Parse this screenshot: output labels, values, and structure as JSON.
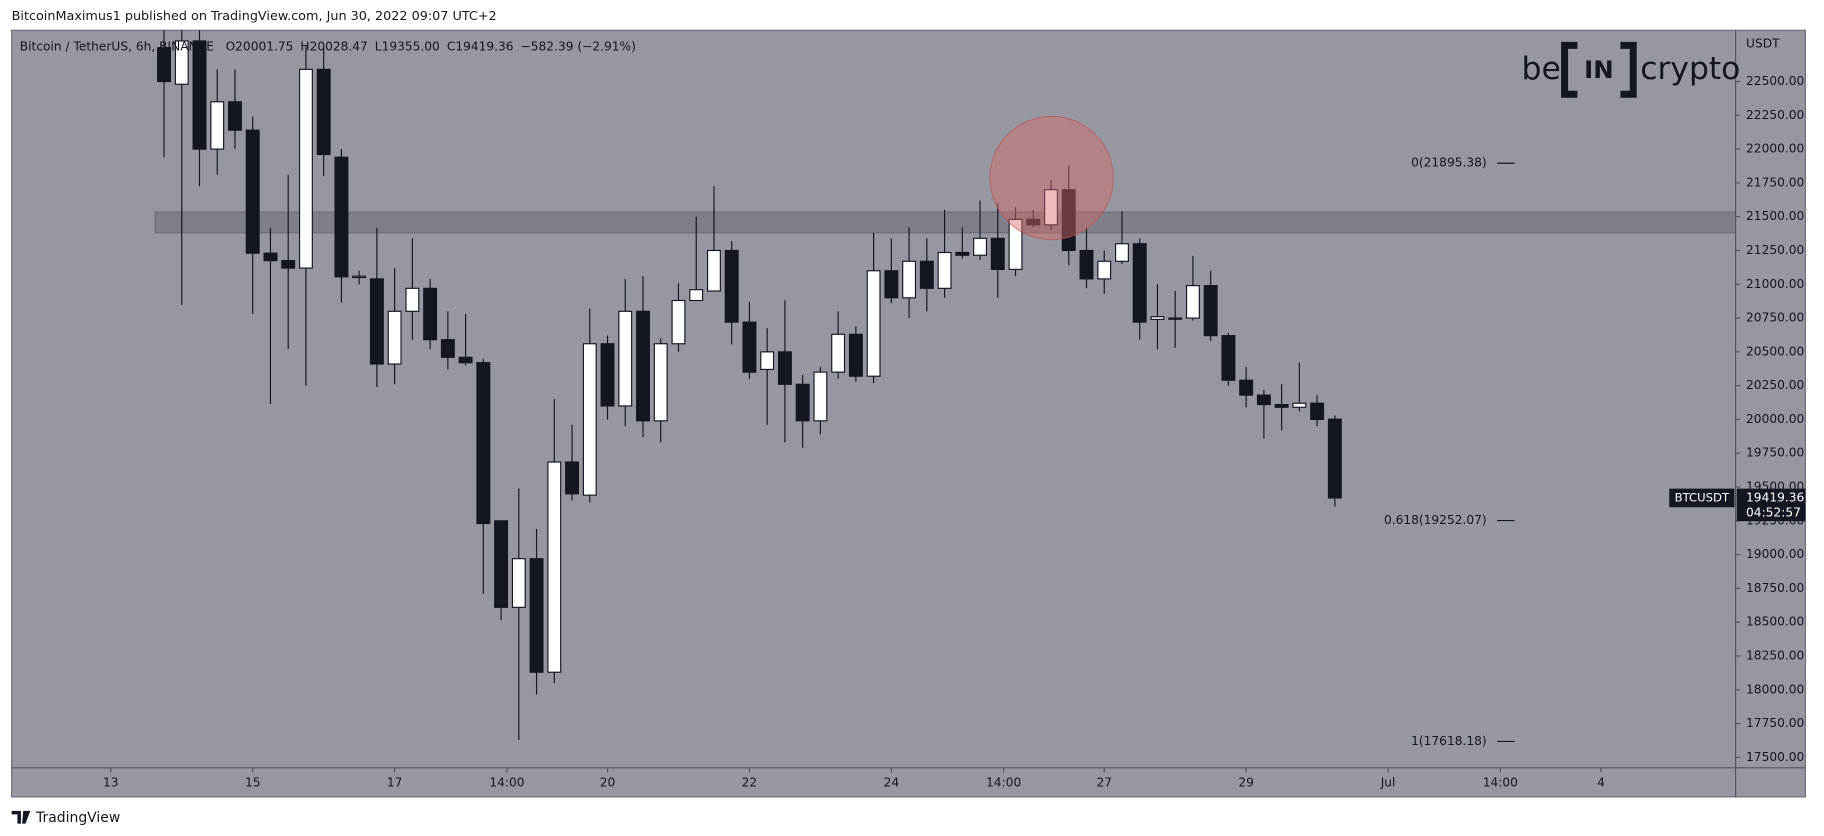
{
  "publish_note": "BitcoinMaximus1 published on TradingView.com, Jun 30, 2022 09:07 UTC+2",
  "footer": "TradingView",
  "logo": {
    "part1": "be",
    "part2": "IN",
    "part3": "crypto"
  },
  "chart_data": {
    "type": "candlestick",
    "header": {
      "symbol": "Bitcoin / TetherUS, 6h, BINANCE",
      "ohlc": [
        {
          "key": "O",
          "value": "20001.75"
        },
        {
          "key": "H",
          "value": "20028.47"
        },
        {
          "key": "L",
          "value": "19355.00"
        },
        {
          "key": "C",
          "value": "19419.36"
        }
      ],
      "change": "−582.39 (−2.91%)"
    },
    "currency": "USDT",
    "open": [
      22750,
      22480,
      22800,
      22000,
      22350,
      22140,
      21230,
      21175,
      21120,
      22590,
      21940,
      21050,
      21040,
      20410,
      20800,
      20970,
      20590,
      20460,
      20420,
      19250,
      18610,
      18970,
      18130,
      19685,
      19440,
      20560,
      20100,
      20800,
      19990,
      20560,
      20880,
      20950,
      21250,
      20720,
      20370,
      20500,
      20260,
      19990,
      20350,
      20630,
      20320,
      21100,
      20900,
      21170,
      20970,
      21235,
      21215,
      21340,
      21110,
      21480,
      21440,
      21700,
      21250,
      21040,
      21170,
      21300,
      20740,
      20750,
      20750,
      20990,
      20620,
      20290,
      20180,
      20110,
      20090,
      20120,
      20001.75
    ],
    "high": [
      22900,
      22900,
      22900,
      22590,
      22590,
      22240,
      21420,
      21810,
      22760,
      22760,
      22000,
      21100,
      21420,
      21120,
      21340,
      21040,
      20800,
      20780,
      20450,
      19250,
      19490,
      19190,
      20150,
      19960,
      20820,
      20620,
      21040,
      21060,
      20600,
      21010,
      21500,
      21725,
      21320,
      20870,
      20675,
      20880,
      20330,
      20390,
      20800,
      20690,
      21380,
      21340,
      21420,
      21340,
      21550,
      21420,
      21620,
      21600,
      21570,
      21550,
      21770,
      21880,
      21420,
      21250,
      21540,
      21340,
      21000,
      20950,
      21210,
      21100,
      20640,
      20390,
      20220,
      20260,
      20420,
      20180,
      20028.47
    ],
    "low": [
      21940,
      20848,
      21725,
      21810,
      22000,
      20780,
      20115,
      20520,
      20250,
      21800,
      20865,
      21000,
      20240,
      20260,
      20590,
      20520,
      20370,
      20400,
      18710,
      18515,
      17630,
      17965,
      18050,
      19400,
      19385,
      20000,
      19950,
      19870,
      19830,
      20500,
      20880,
      20950,
      20555,
      20300,
      19960,
      19830,
      19790,
      19890,
      20300,
      20280,
      20270,
      20860,
      20750,
      20800,
      20900,
      21190,
      21180,
      20900,
      21060,
      21420,
      21400,
      21140,
      20970,
      20930,
      21150,
      20590,
      20520,
      20530,
      20730,
      20580,
      20250,
      20090,
      19860,
      19920,
      20060,
      19950,
      19355
    ],
    "close": [
      22500,
      22800,
      22000,
      22350,
      22140,
      21230,
      21175,
      21120,
      22590,
      21960,
      21055,
      21060,
      20410,
      20800,
      20970,
      20590,
      20460,
      20420,
      19230,
      18610,
      18970,
      18130,
      19685,
      19450,
      20560,
      20100,
      20800,
      19990,
      20560,
      20880,
      20960,
      21250,
      20720,
      20350,
      20500,
      20260,
      19990,
      20350,
      20630,
      20320,
      21100,
      20900,
      21170,
      20970,
      21235,
      21215,
      21340,
      21110,
      21480,
      21440,
      21700,
      21250,
      21040,
      21170,
      21300,
      20720,
      20760,
      20750,
      20990,
      20620,
      20290,
      20180,
      20110,
      20090,
      20120,
      20000,
      19419.36
    ],
    "up_color": "#ffffff",
    "down_color": "#131722",
    "wick_color": "#131722",
    "background": "#9598a1",
    "xlim": [
      -8.59,
      88.59
    ],
    "xticks": [
      {
        "value": -3,
        "label": "13"
      },
      {
        "value": 5,
        "label": "15"
      },
      {
        "value": 13,
        "label": "17"
      },
      {
        "value": 19.33,
        "label": "14:00"
      },
      {
        "value": 25,
        "label": "20"
      },
      {
        "value": 33,
        "label": "22"
      },
      {
        "value": 41,
        "label": "24"
      },
      {
        "value": 47.33,
        "label": "14:00"
      },
      {
        "value": 53,
        "label": "27"
      },
      {
        "value": 61,
        "label": "29"
      },
      {
        "value": 69,
        "label": "Jul"
      },
      {
        "value": 75.33,
        "label": "14:00"
      },
      {
        "value": 81,
        "label": "4"
      }
    ],
    "ylim": [
      17423,
      22879
    ],
    "yticks": [
      {
        "value": 17500,
        "label": "17500.00"
      },
      {
        "value": 17750,
        "label": "17750.00"
      },
      {
        "value": 18000,
        "label": "18000.00"
      },
      {
        "value": 18250,
        "label": "18250.00"
      },
      {
        "value": 18500,
        "label": "18500.00"
      },
      {
        "value": 18750,
        "label": "18750.00"
      },
      {
        "value": 19000,
        "label": "19000.00"
      },
      {
        "value": 19250,
        "label": "19250.00"
      },
      {
        "value": 19500,
        "label": "19500.00"
      },
      {
        "value": 19750,
        "label": "19750.00"
      },
      {
        "value": 20000,
        "label": "20000.00"
      },
      {
        "value": 20250,
        "label": "20250.00"
      },
      {
        "value": 20500,
        "label": "20500.00"
      },
      {
        "value": 20750,
        "label": "20750.00"
      },
      {
        "value": 21000,
        "label": "21000.00"
      },
      {
        "value": 21250,
        "label": "21250.00"
      },
      {
        "value": 21500,
        "label": "21500.00"
      },
      {
        "value": 21750,
        "label": "21750.00"
      },
      {
        "value": 22000,
        "label": "22000.00"
      },
      {
        "value": 22250,
        "label": "22250.00"
      },
      {
        "value": 22500,
        "label": "22500.00"
      }
    ],
    "grid": false,
    "zone": {
      "low": 21380,
      "high": 21535
    },
    "fib_levels": [
      {
        "value": 21895.38,
        "label": "0(21895.38)"
      },
      {
        "value": 19252.07,
        "label": "0.618(19252.07)"
      },
      {
        "value": 17618.18,
        "label": "1(17618.18)"
      }
    ],
    "price_tag": {
      "symbol": "BTCUSDT",
      "price": "19419.36",
      "countdown": "04:52:57"
    }
  }
}
